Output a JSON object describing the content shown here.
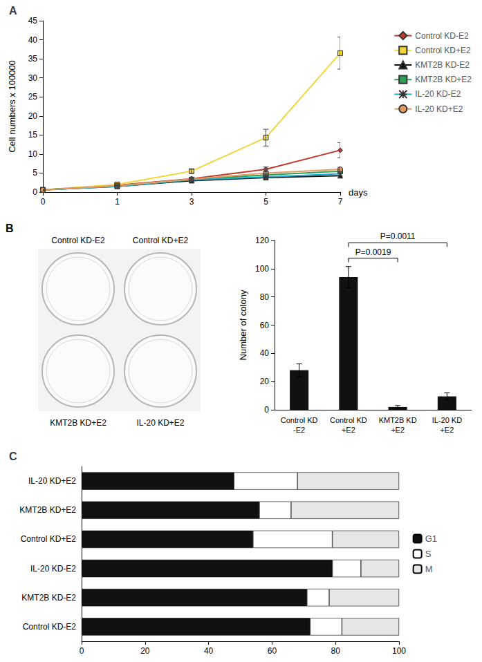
{
  "chart_data": [
    {
      "type": "line",
      "title": "A",
      "categories": [
        "0",
        "1",
        "3",
        "5",
        "7"
      ],
      "x_label": "days",
      "y_label": "Cell numbers x 100000",
      "ylim": [
        0,
        45
      ],
      "yticks": [
        0,
        5,
        10,
        15,
        20,
        25,
        30,
        35,
        40,
        45
      ],
      "legend": "right",
      "series": [
        {
          "name": "Control KD-E2",
          "color": "#c0392b",
          "marker": "diamond",
          "values": [
            0.6,
            1.8,
            3.5,
            6,
            11
          ],
          "errors": [
            0.1,
            0.2,
            0.4,
            0.6,
            2
          ]
        },
        {
          "name": "Control KD+E2",
          "color": "#f2d53c",
          "marker": "square",
          "values": [
            0.6,
            2,
            5.5,
            14.3,
            36.5
          ],
          "errors": [
            0.1,
            0.3,
            0.5,
            2.2,
            4.2
          ]
        },
        {
          "name": "KMT2B KD-E2",
          "color": "#111111",
          "marker": "triangle",
          "values": [
            0.6,
            1.5,
            3,
            3.8,
            4.3
          ],
          "errors": [
            0.1,
            0.2,
            0.3,
            0.4,
            0.5
          ]
        },
        {
          "name": "KMT2B KD+E2",
          "color": "#2e9e5b",
          "marker": "square",
          "values": [
            0.6,
            1.6,
            3.3,
            4.5,
            5.5
          ],
          "errors": [
            0.1,
            0.2,
            0.3,
            0.4,
            0.5
          ]
        },
        {
          "name": "IL-20 KD-E2",
          "color": "#1bb0ce",
          "marker": "x",
          "values": [
            0.6,
            1.5,
            3.2,
            4,
            4.8
          ],
          "errors": [
            0.1,
            0.2,
            0.3,
            0.4,
            0.5
          ]
        },
        {
          "name": "IL-20 KD+E2",
          "color": "#e69a5c",
          "marker": "circle",
          "values": [
            0.6,
            1.7,
            3.4,
            5,
            6
          ],
          "errors": [
            0.1,
            0.2,
            0.3,
            0.4,
            0.5
          ]
        }
      ]
    },
    {
      "type": "image",
      "title": "B",
      "wells": [
        "Control KD-E2",
        "Control KD+E2",
        "KMT2B KD+E2",
        "IL-20 KD+E2"
      ]
    },
    {
      "type": "bar",
      "categories": [
        "Control KD\n-E2",
        "Control KD\n+E2",
        "KMT2B KD\n+E2",
        "IL-20 KD\n+E2"
      ],
      "values": [
        28,
        94,
        2,
        9.5
      ],
      "errors": [
        4.5,
        7.5,
        1,
        2.5
      ],
      "color": "#111111",
      "y_label": "Number of colony",
      "ylim": [
        0,
        120
      ],
      "yticks": [
        0,
        20,
        40,
        60,
        80,
        100,
        120
      ],
      "annotations": [
        {
          "between": [
            "Control KD\n+E2",
            "KMT2B KD\n+E2"
          ],
          "label": "P=0.0019"
        },
        {
          "between": [
            "Control KD\n+E2",
            "IL-20 KD\n+E2"
          ],
          "label": "P=0.0011"
        }
      ]
    },
    {
      "type": "bar",
      "title": "C",
      "orientation": "horizontal",
      "stacked": true,
      "legend": "right",
      "categories": [
        "Control KD-E2",
        "KMT2B KD-E2",
        "IL-20 KD-E2",
        "Control KD+E2",
        "KMT2B KD+E2",
        "IL-20 KD+E2"
      ],
      "xlim": [
        0,
        100
      ],
      "xticks": [
        0,
        20,
        40,
        60,
        80,
        100
      ],
      "series": [
        {
          "name": "G1",
          "color": "#111111",
          "values": [
            72,
            71,
            79,
            54,
            56,
            48
          ]
        },
        {
          "name": "S",
          "color": "#ffffff",
          "values": [
            10,
            7,
            9,
            25,
            10,
            20
          ]
        },
        {
          "name": "M",
          "color": "#e6e6e6",
          "values": [
            18,
            22,
            12,
            21,
            34,
            32
          ]
        }
      ]
    }
  ]
}
